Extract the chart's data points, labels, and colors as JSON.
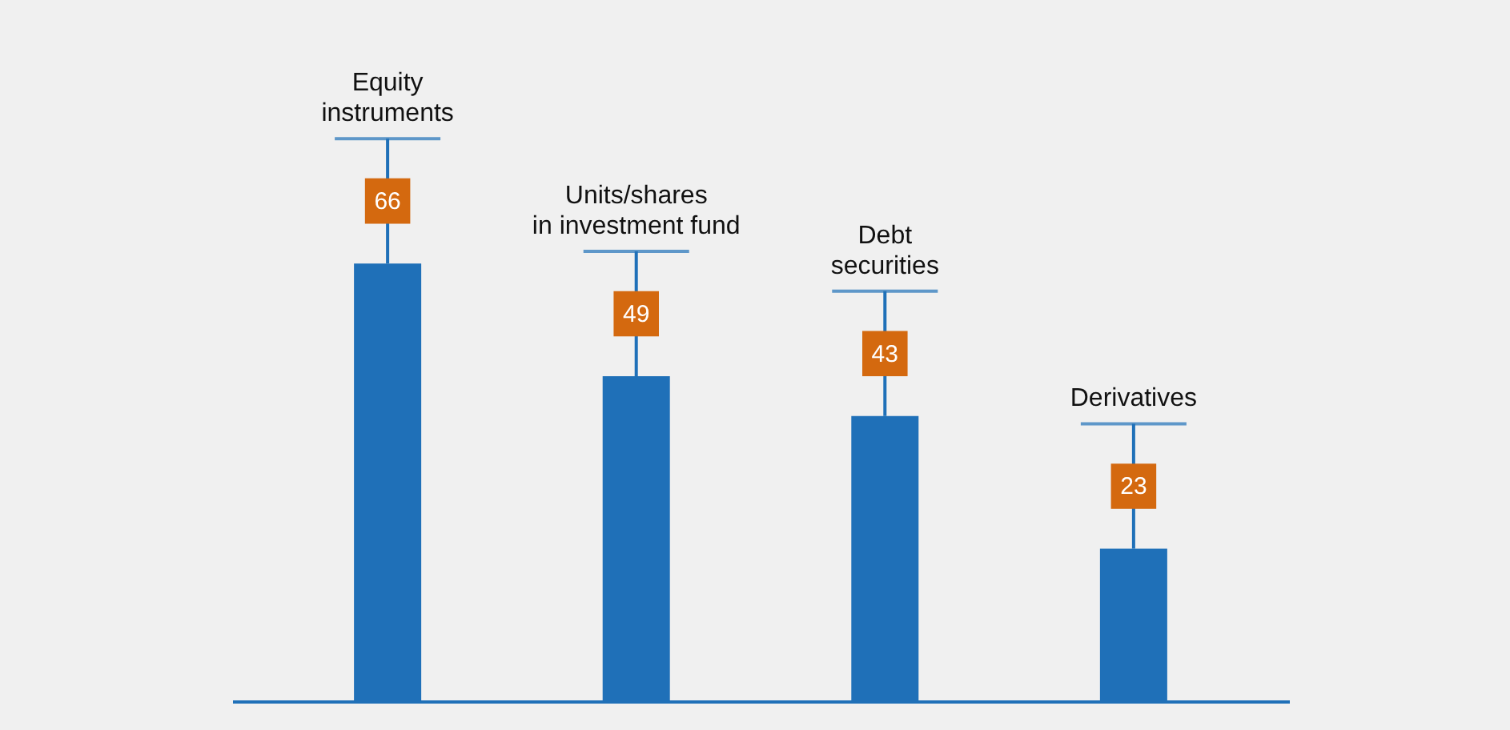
{
  "chart_data": {
    "type": "bar",
    "categories": [
      "Equity\ninstruments",
      "Units/shares\nin investment fund",
      "Debt\nsecurities",
      "Derivatives"
    ],
    "values": [
      66,
      49,
      43,
      23
    ],
    "color": "#1f70b8",
    "data_labels": true
  }
}
